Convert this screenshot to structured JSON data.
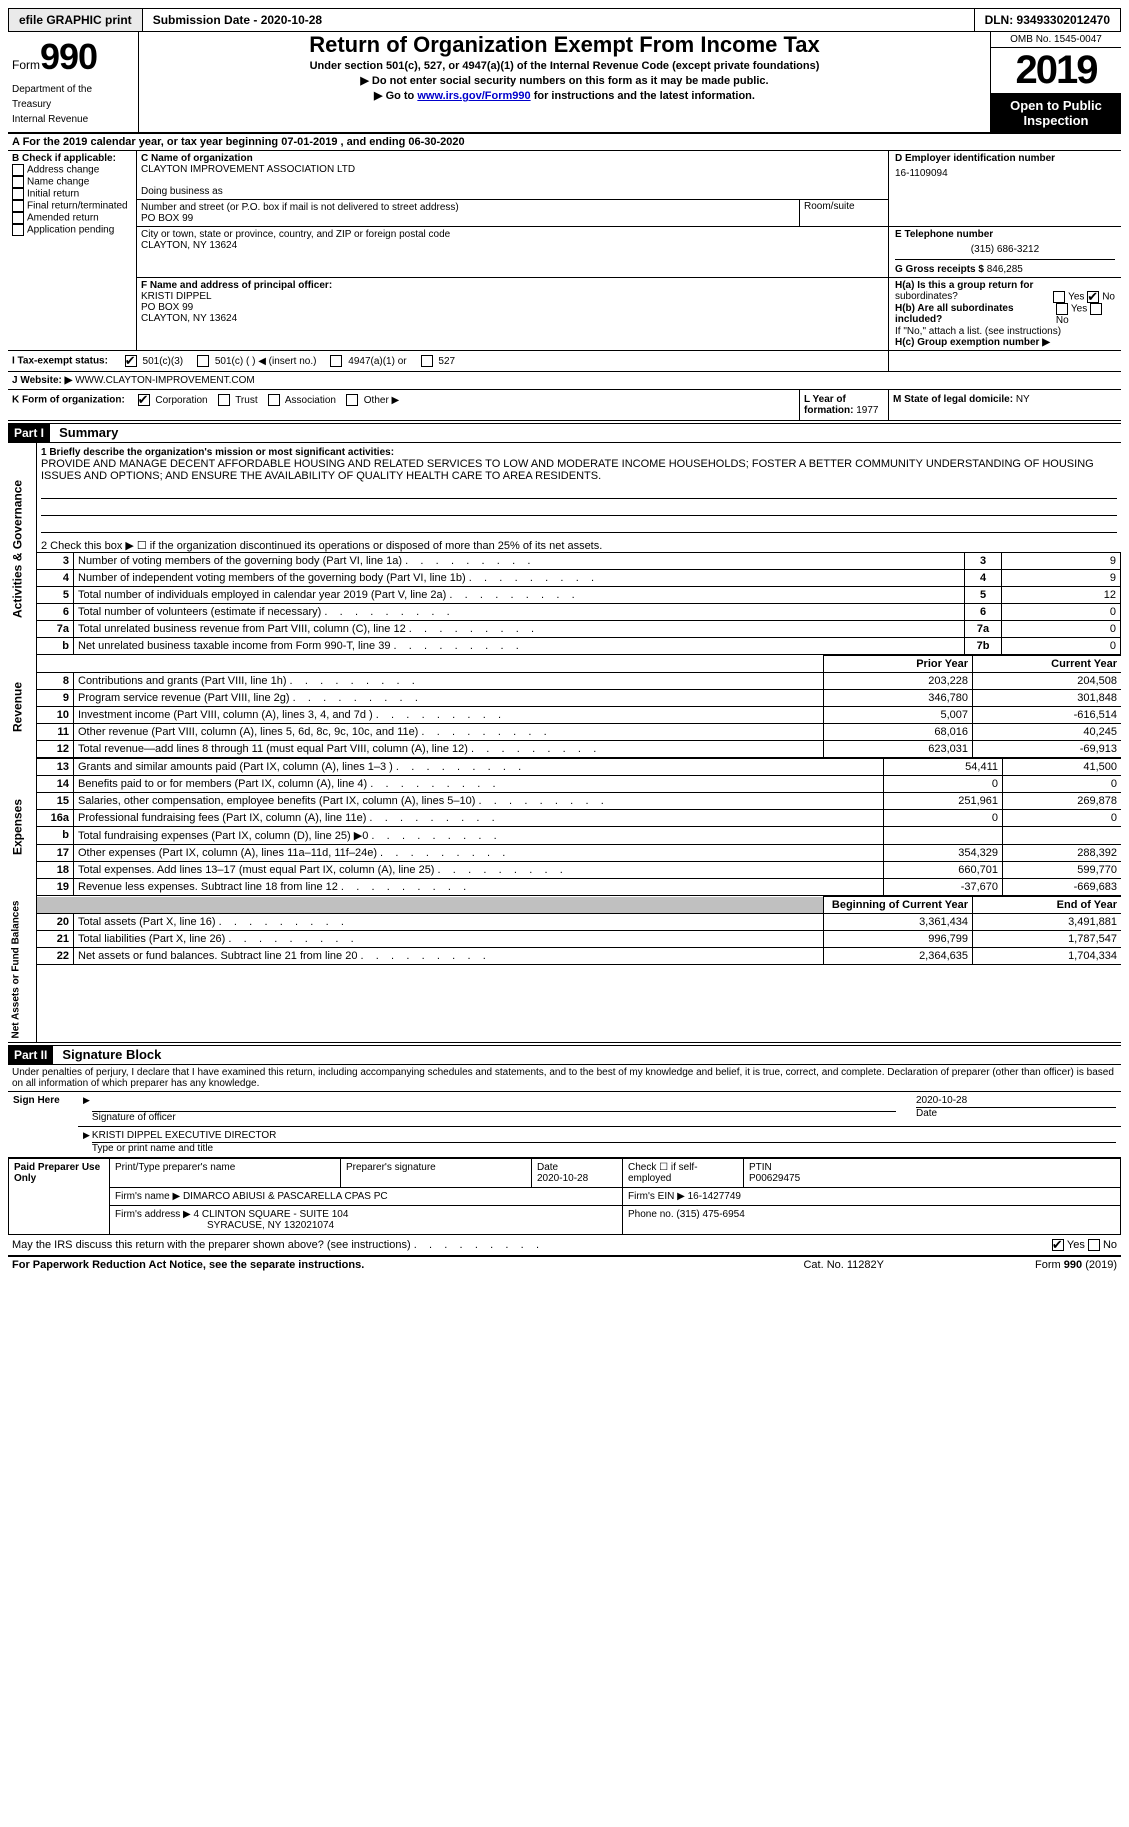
{
  "topbar": {
    "efile": "efile GRAPHIC print",
    "submission": "Submission Date - 2020-10-28",
    "dln": "DLN: 93493302012470"
  },
  "header": {
    "form_word": "Form",
    "form_num": "990",
    "dept1": "Department of the",
    "dept2": "Treasury",
    "dept3": "Internal Revenue",
    "title": "Return of Organization Exempt From Income Tax",
    "subtitle1": "Under section 501(c), 527, or 4947(a)(1) of the Internal Revenue Code (except private foundations)",
    "subtitle2": "▶ Do not enter social security numbers on this form as it may be made public.",
    "subtitle3_pre": "▶ Go to ",
    "subtitle3_link": "www.irs.gov/Form990",
    "subtitle3_post": " for instructions and the latest information.",
    "omb": "OMB No. 1545-0047",
    "year": "2019",
    "open1": "Open to Public",
    "open2": "Inspection"
  },
  "period": {
    "text_pre": "A For the 2019 calendar year, or tax year beginning ",
    "begin": "07-01-2019",
    "mid": " , and ending ",
    "end": "06-30-2020"
  },
  "boxB": {
    "title": "B Check if applicable:",
    "items": [
      "Address change",
      "Name change",
      "Initial return",
      "Final return/terminated",
      "Amended return",
      "Application pending"
    ]
  },
  "boxC": {
    "label": "C Name of organization",
    "name": "CLAYTON IMPROVEMENT ASSOCIATION LTD",
    "dba_label": "Doing business as",
    "street_label": "Number and street (or P.O. box if mail is not delivered to street address)",
    "room_label": "Room/suite",
    "street": "PO BOX 99",
    "city_label": "City or town, state or province, country, and ZIP or foreign postal code",
    "city": "CLAYTON, NY  13624"
  },
  "boxD": {
    "label": "D Employer identification number",
    "value": "16-1109094"
  },
  "boxE": {
    "label": "E Telephone number",
    "value": "(315) 686-3212"
  },
  "boxG": {
    "label": "G Gross receipts $",
    "value": "846,285"
  },
  "boxF": {
    "label": "F  Name and address of principal officer:",
    "line1": "KRISTI DIPPEL",
    "line2": "PO BOX 99",
    "line3": "CLAYTON, NY  13624"
  },
  "boxH": {
    "a": "H(a)  Is this a group return for",
    "a2": "subordinates?",
    "b": "H(b)  Are all subordinates included?",
    "b2": "If \"No,\" attach a list. (see instructions)",
    "c": "H(c)  Group exemption number ▶",
    "yes": "Yes",
    "no": "No"
  },
  "boxI": {
    "label": "I    Tax-exempt status:",
    "opts": [
      "501(c)(3)",
      "501(c) (  ) ◀ (insert no.)",
      "4947(a)(1) or",
      "527"
    ]
  },
  "boxJ": {
    "label": "J    Website: ▶",
    "value": "WWW.CLAYTON-IMPROVEMENT.COM"
  },
  "boxK": {
    "label": "K Form of organization:",
    "opts": [
      "Corporation",
      "Trust",
      "Association",
      "Other ▶"
    ]
  },
  "boxL": {
    "label": "L Year of formation:",
    "value": "1977"
  },
  "boxM": {
    "label": "M State of legal domicile:",
    "value": "NY"
  },
  "part1": {
    "tag": "Part I",
    "title": "Summary",
    "line1_label": "1   Briefly describe the organization's mission or most significant activities:",
    "mission": "PROVIDE AND MANAGE DECENT AFFORDABLE HOUSING AND RELATED SERVICES TO LOW AND MODERATE INCOME HOUSEHOLDS; FOSTER A BETTER COMMUNITY UNDERSTANDING OF HOUSING ISSUES AND OPTIONS; AND ENSURE THE AVAILABILITY OF QUALITY HEALTH CARE TO AREA RESIDENTS.",
    "line2": "2   Check this box ▶ ☐  if the organization discontinued its operations or disposed of more than 25% of its net assets.",
    "side_ag": "Activities & Governance",
    "side_rev": "Revenue",
    "side_exp": "Expenses",
    "side_na": "Net Assets or Fund Balances",
    "rows_top": [
      {
        "n": "3",
        "t": "Number of voting members of the governing body (Part VI, line 1a)",
        "v": "9"
      },
      {
        "n": "4",
        "t": "Number of independent voting members of the governing body (Part VI, line 1b)",
        "v": "9"
      },
      {
        "n": "5",
        "t": "Total number of individuals employed in calendar year 2019 (Part V, line 2a)",
        "v": "12"
      },
      {
        "n": "6",
        "t": "Total number of volunteers (estimate if necessary)",
        "v": "0"
      },
      {
        "n": "7a",
        "t": "Total unrelated business revenue from Part VIII, column (C), line 12",
        "v": "0"
      },
      {
        "n": "7b",
        "t": "Net unrelated business taxable income from Form 990-T, line 39",
        "v": "0",
        "label": "b"
      }
    ],
    "col_prior": "Prior Year",
    "col_current": "Current Year",
    "rows_rev": [
      {
        "n": "8",
        "t": "Contributions and grants (Part VIII, line 1h)",
        "p": "203,228",
        "c": "204,508"
      },
      {
        "n": "9",
        "t": "Program service revenue (Part VIII, line 2g)",
        "p": "346,780",
        "c": "301,848"
      },
      {
        "n": "10",
        "t": "Investment income (Part VIII, column (A), lines 3, 4, and 7d )",
        "p": "5,007",
        "c": "-616,514"
      },
      {
        "n": "11",
        "t": "Other revenue (Part VIII, column (A), lines 5, 6d, 8c, 9c, 10c, and 11e)",
        "p": "68,016",
        "c": "40,245"
      },
      {
        "n": "12",
        "t": "Total revenue—add lines 8 through 11 (must equal Part VIII, column (A), line 12)",
        "p": "623,031",
        "c": "-69,913"
      }
    ],
    "rows_exp": [
      {
        "n": "13",
        "t": "Grants and similar amounts paid (Part IX, column (A), lines 1–3 )",
        "p": "54,411",
        "c": "41,500"
      },
      {
        "n": "14",
        "t": "Benefits paid to or for members (Part IX, column (A), line 4)",
        "p": "0",
        "c": "0"
      },
      {
        "n": "15",
        "t": "Salaries, other compensation, employee benefits (Part IX, column (A), lines 5–10)",
        "p": "251,961",
        "c": "269,878"
      },
      {
        "n": "16a",
        "t": "Professional fundraising fees (Part IX, column (A), line 11e)",
        "p": "0",
        "c": "0"
      },
      {
        "n": "b",
        "t": "Total fundraising expenses (Part IX, column (D), line 25) ▶0",
        "p": "",
        "c": "",
        "grey": true
      },
      {
        "n": "17",
        "t": "Other expenses (Part IX, column (A), lines 11a–11d, 11f–24e)",
        "p": "354,329",
        "c": "288,392"
      },
      {
        "n": "18",
        "t": "Total expenses. Add lines 13–17 (must equal Part IX, column (A), line 25)",
        "p": "660,701",
        "c": "599,770"
      },
      {
        "n": "19",
        "t": "Revenue less expenses. Subtract line 18 from line 12",
        "p": "-37,670",
        "c": "-669,683"
      }
    ],
    "col_begin": "Beginning of Current Year",
    "col_end": "End of Year",
    "rows_na": [
      {
        "n": "20",
        "t": "Total assets (Part X, line 16)",
        "p": "3,361,434",
        "c": "3,491,881"
      },
      {
        "n": "21",
        "t": "Total liabilities (Part X, line 26)",
        "p": "996,799",
        "c": "1,787,547"
      },
      {
        "n": "22",
        "t": "Net assets or fund balances. Subtract line 21 from line 20",
        "p": "2,364,635",
        "c": "1,704,334"
      }
    ]
  },
  "part2": {
    "tag": "Part II",
    "title": "Signature Block",
    "decl": "Under penalties of perjury, I declare that I have examined this return, including accompanying schedules and statements, and to the best of my knowledge and belief, it is true, correct, and complete. Declaration of preparer (other than officer) is based on all information of which preparer has any knowledge.",
    "sign_here": "Sign Here",
    "sig_officer": "Signature of officer",
    "sig_date": "Date",
    "sig_date_val": "2020-10-28",
    "officer_name": "KRISTI DIPPEL  EXECUTIVE DIRECTOR",
    "officer_label": "Type or print name and title",
    "paid": "Paid Preparer Use Only",
    "prep_name_label": "Print/Type preparer's name",
    "prep_sig_label": "Preparer's signature",
    "prep_date_label": "Date",
    "prep_date": "2020-10-28",
    "prep_self": "Check ☐ if self-employed",
    "ptin_label": "PTIN",
    "ptin": "P00629475",
    "firm_name_label": "Firm's name    ▶",
    "firm_name": "DIMARCO ABIUSI & PASCARELLA CPAS PC",
    "firm_ein_label": "Firm's EIN ▶",
    "firm_ein": "16-1427749",
    "firm_addr_label": "Firm's address ▶",
    "firm_addr1": "4 CLINTON SQUARE - SUITE 104",
    "firm_addr2": "SYRACUSE, NY  132021074",
    "firm_phone_label": "Phone no.",
    "firm_phone": "(315) 475-6954",
    "discuss": "May the IRS discuss this return with the preparer shown above? (see instructions)",
    "yes": "Yes",
    "no": "No"
  },
  "footer": {
    "left": "For Paperwork Reduction Act Notice, see the separate instructions.",
    "mid": "Cat. No. 11282Y",
    "right": "Form 990 (2019)"
  }
}
